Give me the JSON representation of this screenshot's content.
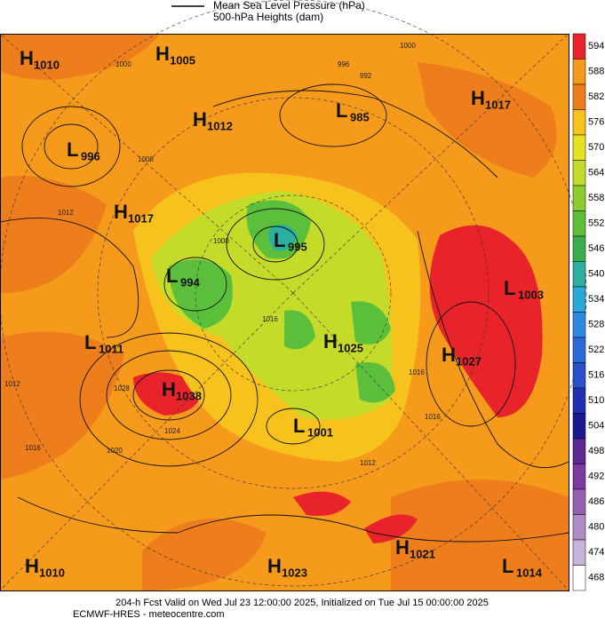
{
  "header": {
    "legend": [
      "Mean Sea Level Pressure (hPa)",
      "500-hPa Heights (dam)"
    ]
  },
  "centers": [
    {
      "kind": "H",
      "value": 1010
    },
    {
      "kind": "H",
      "value": 1005
    },
    {
      "kind": "L",
      "value": 996
    },
    {
      "kind": "H",
      "value": 1012
    },
    {
      "kind": "L",
      "value": 985
    },
    {
      "kind": "H",
      "value": 1017
    },
    {
      "kind": "H",
      "value": 1017
    },
    {
      "kind": "L",
      "value": 995
    },
    {
      "kind": "L",
      "value": 994
    },
    {
      "kind": "L",
      "value": 1003
    },
    {
      "kind": "L",
      "value": 1011
    },
    {
      "kind": "H",
      "value": 1025
    },
    {
      "kind": "H",
      "value": 1027
    },
    {
      "kind": "H",
      "value": 1038
    },
    {
      "kind": "L",
      "value": 1001
    },
    {
      "kind": "H",
      "value": 1010
    },
    {
      "kind": "H",
      "value": 1023
    },
    {
      "kind": "H",
      "value": 1021
    },
    {
      "kind": "L",
      "value": 1014
    }
  ],
  "contour_labels": [
    1000,
    996,
    992,
    1000,
    1008,
    1012,
    1000,
    1016,
    1028,
    1024,
    1020,
    1016,
    1012,
    1016,
    1016,
    1012
  ],
  "colorbar": {
    "ticks": [
      594,
      588,
      582,
      576,
      570,
      564,
      558,
      552,
      546,
      540,
      534,
      528,
      522,
      516,
      510,
      504,
      498,
      492,
      486,
      480,
      474,
      468
    ],
    "colors": [
      "#e8232a",
      "#f59a1b",
      "#ee7d1b",
      "#f7c21c",
      "#e6e21f",
      "#c4db2a",
      "#8ccc2c",
      "#5cbf3c",
      "#3aad4c",
      "#29b0a0",
      "#2aa8d8",
      "#2b8ae0",
      "#2a6ad8",
      "#2850c8",
      "#2030b0",
      "#1a1a90",
      "#5a2a90",
      "#7a3aa0",
      "#9560b0",
      "#b08cc4",
      "#c9b2d8",
      "#ffffff"
    ]
  },
  "footer": [
    "204-h Fcst Valid on Wed Jul 23 12:00:00 2025, Initialized on Tue Jul 15 00:00:00 2025",
    "ECMWF-HRES - meteocentre.com"
  ]
}
